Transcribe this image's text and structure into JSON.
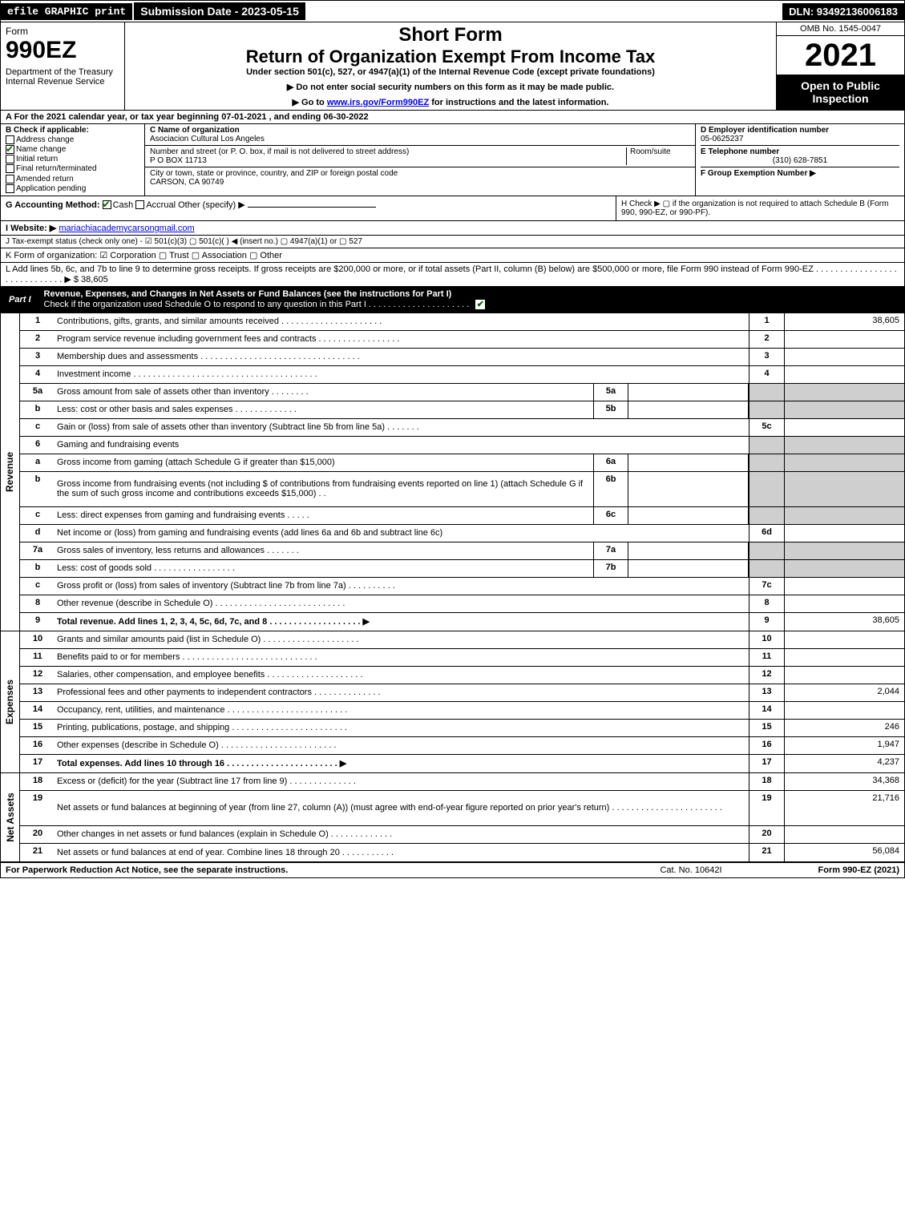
{
  "topbar": {
    "efile": "efile GRAPHIC print",
    "submission": "Submission Date - 2023-05-15",
    "dln": "DLN: 93492136006183"
  },
  "header": {
    "form_word": "Form",
    "form_num": "990EZ",
    "dept": "Department of the Treasury\nInternal Revenue Service",
    "short_form": "Short Form",
    "main_title": "Return of Organization Exempt From Income Tax",
    "subtitle": "Under section 501(c), 527, or 4947(a)(1) of the Internal Revenue Code (except private foundations)",
    "note1": "▶ Do not enter social security numbers on this form as it may be made public.",
    "note2_pre": "▶ Go to ",
    "note2_link": "www.irs.gov/Form990EZ",
    "note2_post": " for instructions and the latest information.",
    "omb": "OMB No. 1545-0047",
    "year": "2021",
    "open": "Open to Public Inspection"
  },
  "sectionA": "A  For the 2021 calendar year, or tax year beginning 07-01-2021 , and ending 06-30-2022",
  "colB": {
    "title": "B  Check if applicable:",
    "items": [
      {
        "label": "Address change",
        "checked": false
      },
      {
        "label": "Name change",
        "checked": true
      },
      {
        "label": "Initial return",
        "checked": false
      },
      {
        "label": "Final return/terminated",
        "checked": false
      },
      {
        "label": "Amended return",
        "checked": false
      },
      {
        "label": "Application pending",
        "checked": false
      }
    ]
  },
  "colC": {
    "name_label": "C Name of organization",
    "name": "Asociacion Cultural Los Angeles",
    "street_label": "Number and street (or P. O. box, if mail is not delivered to street address)",
    "room_label": "Room/suite",
    "street": "P O BOX 11713",
    "city_label": "City or town, state or province, country, and ZIP or foreign postal code",
    "city": "CARSON, CA  90749"
  },
  "colD": {
    "ein_label": "D Employer identification number",
    "ein": "05-0625237",
    "phone_label": "E Telephone number",
    "phone": "(310) 628-7851",
    "group_label": "F Group Exemption Number   ▶"
  },
  "rowG": {
    "label": "G Accounting Method:",
    "cash": "Cash",
    "accrual": "Accrual",
    "other": "Other (specify) ▶"
  },
  "rowH": "H  Check ▶  ▢  if the organization is not required to attach Schedule B (Form 990, 990-EZ, or 990-PF).",
  "rowI": {
    "label": "I Website: ▶",
    "value": "mariachiacademycarsongmail.com"
  },
  "rowJ": "J Tax-exempt status (check only one) - ☑ 501(c)(3)  ▢ 501(c)(  ) ◀ (insert no.)  ▢ 4947(a)(1) or  ▢ 527",
  "rowK": "K Form of organization:   ☑ Corporation   ▢ Trust   ▢ Association   ▢ Other",
  "rowL": {
    "text": "L Add lines 5b, 6c, and 7b to line 9 to determine gross receipts. If gross receipts are $200,000 or more, or if total assets (Part II, column (B) below) are $500,000 or more, file Form 990 instead of Form 990-EZ . . . . . . . . . . . . . . . . . . . . . . . . . . . . .   ▶ $",
    "amount": "38,605"
  },
  "partI": {
    "label": "Part I",
    "title": "Revenue, Expenses, and Changes in Net Assets or Fund Balances (see the instructions for Part I)",
    "check_text": "Check if the organization used Schedule O to respond to any question in this Part I . . . . . . . . . . . . . . . . . . . . .",
    "checked": true
  },
  "sections": {
    "revenue_label": "Revenue",
    "expenses_label": "Expenses",
    "netassets_label": "Net Assets"
  },
  "lines": [
    {
      "n": "1",
      "text": "Contributions, gifts, grants, and similar amounts received . . . . . . . . . . . . . . . . . . . . .",
      "box": "1",
      "val": "38,605"
    },
    {
      "n": "2",
      "text": "Program service revenue including government fees and contracts . . . . . . . . . . . . . . . . .",
      "box": "2",
      "val": ""
    },
    {
      "n": "3",
      "text": "Membership dues and assessments . . . . . . . . . . . . . . . . . . . . . . . . . . . . . . . . .",
      "box": "3",
      "val": ""
    },
    {
      "n": "4",
      "text": "Investment income . . . . . . . . . . . . . . . . . . . . . . . . . . . . . . . . . . . . . .",
      "box": "4",
      "val": ""
    },
    {
      "n": "5a",
      "text": "Gross amount from sale of assets other than inventory . . . . . . . .",
      "sub": "5a",
      "shaded": true
    },
    {
      "n": "b",
      "text": "Less: cost or other basis and sales expenses . . . . . . . . . . . . .",
      "sub": "5b",
      "shaded": true
    },
    {
      "n": "c",
      "text": "Gain or (loss) from sale of assets other than inventory (Subtract line 5b from line 5a) . . . . . . .",
      "box": "5c",
      "val": ""
    },
    {
      "n": "6",
      "text": "Gaming and fundraising events",
      "nobox": true,
      "shaded": true
    },
    {
      "n": "a",
      "text": "Gross income from gaming (attach Schedule G if greater than $15,000)",
      "sub": "6a",
      "shaded": true
    },
    {
      "n": "b",
      "text": "Gross income from fundraising events (not including $                of contributions from fundraising events reported on line 1) (attach Schedule G if the sum of such gross income and contributions exceeds $15,000)    . .",
      "sub": "6b",
      "shaded": true,
      "tall": true
    },
    {
      "n": "c",
      "text": "Less: direct expenses from gaming and fundraising events    . . . . .",
      "sub": "6c",
      "shaded": true
    },
    {
      "n": "d",
      "text": "Net income or (loss) from gaming and fundraising events (add lines 6a and 6b and subtract line 6c)",
      "box": "6d",
      "val": ""
    },
    {
      "n": "7a",
      "text": "Gross sales of inventory, less returns and allowances . . . . . . .",
      "sub": "7a",
      "shaded": true
    },
    {
      "n": "b",
      "text": "Less: cost of goods sold        . . . . . . . . . . . . . . . . .",
      "sub": "7b",
      "shaded": true
    },
    {
      "n": "c",
      "text": "Gross profit or (loss) from sales of inventory (Subtract line 7b from line 7a) . . . . . . . . . .",
      "box": "7c",
      "val": ""
    },
    {
      "n": "8",
      "text": "Other revenue (describe in Schedule O) . . . . . . . . . . . . . . . . . . . . . . . . . . .",
      "box": "8",
      "val": ""
    },
    {
      "n": "9",
      "text": "Total revenue. Add lines 1, 2, 3, 4, 5c, 6d, 7c, and 8  . . . . . . . . . . . . . . . . . . .   ▶",
      "box": "9",
      "val": "38,605",
      "bold": true
    }
  ],
  "exp_lines": [
    {
      "n": "10",
      "text": "Grants and similar amounts paid (list in Schedule O) . . . . . . . . . . . . . . . . . . . .",
      "box": "10",
      "val": ""
    },
    {
      "n": "11",
      "text": "Benefits paid to or for members    . . . . . . . . . . . . . . . . . . . . . . . . . . . .",
      "box": "11",
      "val": ""
    },
    {
      "n": "12",
      "text": "Salaries, other compensation, and employee benefits . . . . . . . . . . . . . . . . . . . .",
      "box": "12",
      "val": ""
    },
    {
      "n": "13",
      "text": "Professional fees and other payments to independent contractors . . . . . . . . . . . . . .",
      "box": "13",
      "val": "2,044"
    },
    {
      "n": "14",
      "text": "Occupancy, rent, utilities, and maintenance . . . . . . . . . . . . . . . . . . . . . . . . .",
      "box": "14",
      "val": ""
    },
    {
      "n": "15",
      "text": "Printing, publications, postage, and shipping . . . . . . . . . . . . . . . . . . . . . . . .",
      "box": "15",
      "val": "246"
    },
    {
      "n": "16",
      "text": "Other expenses (describe in Schedule O)    . . . . . . . . . . . . . . . . . . . . . . . .",
      "box": "16",
      "val": "1,947"
    },
    {
      "n": "17",
      "text": "Total expenses. Add lines 10 through 16    . . . . . . . . . . . . . . . . . . . . . . .  ▶",
      "box": "17",
      "val": "4,237",
      "bold": true
    }
  ],
  "na_lines": [
    {
      "n": "18",
      "text": "Excess or (deficit) for the year (Subtract line 17 from line 9)       . . . . . . . . . . . . . .",
      "box": "18",
      "val": "34,368"
    },
    {
      "n": "19",
      "text": "Net assets or fund balances at beginning of year (from line 27, column (A)) (must agree with end-of-year figure reported on prior year's return) . . . . . . . . . . . . . . . . . . . . . . .",
      "box": "19",
      "val": "21,716",
      "tall": true
    },
    {
      "n": "20",
      "text": "Other changes in net assets or fund balances (explain in Schedule O) . . . . . . . . . . . . .",
      "box": "20",
      "val": ""
    },
    {
      "n": "21",
      "text": "Net assets or fund balances at end of year. Combine lines 18 through 20 . . . . . . . . . . .",
      "box": "21",
      "val": "56,084"
    }
  ],
  "footer": {
    "left": "For Paperwork Reduction Act Notice, see the separate instructions.",
    "mid": "Cat. No. 10642I",
    "right": "Form 990-EZ (2021)"
  }
}
